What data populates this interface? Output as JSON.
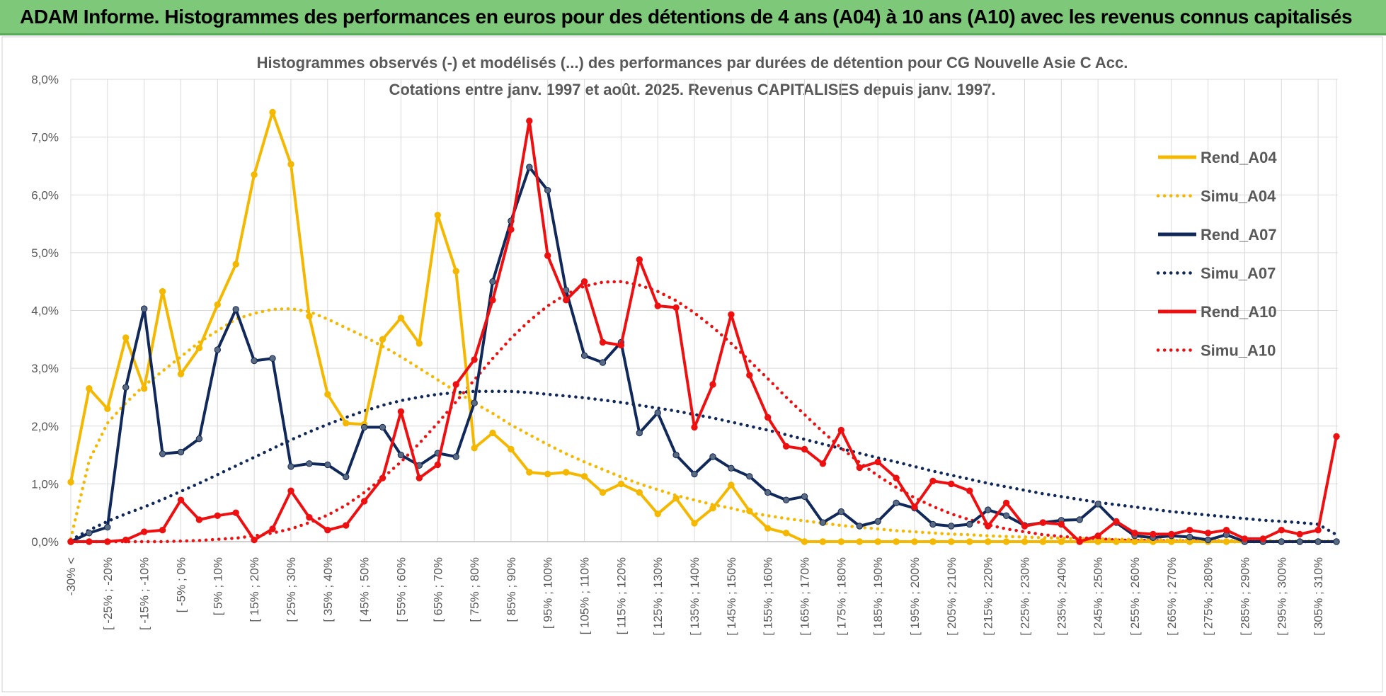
{
  "banner": {
    "title": "ADAM Informe. Histogrammes des performances en euros pour des détentions de 4 ans (A04) à 10 ans (A10) avec les revenus connus capitalisés"
  },
  "colors": {
    "banner_bg": "#7ec87a",
    "A04": "#f5b800",
    "A07": "#10285a",
    "A10": "#ee1010",
    "grid": "#d9d9d9"
  },
  "chart_data": {
    "type": "line",
    "title": "Histogrammes observés (-) et modélisés (...) des performances par durées de détention pour CG Nouvelle Asie C Acc.",
    "subtitle": "Cotations entre janv. 1997 et août. 2025. Revenus CAPITALISES depuis janv. 1997.",
    "xlabel": "",
    "ylabel": "",
    "ylim": [
      0,
      8
    ],
    "y_ticks": [
      "0,0%",
      "1,0%",
      "2,0%",
      "3,0%",
      "4,0%",
      "5,0%",
      "6,0%",
      "7,0%",
      "8,0%"
    ],
    "grid": true,
    "legend_position": "right",
    "x_tick_labels": [
      "-30% <",
      "[ -25% ; -20%",
      "[ -15% ; -10%",
      "[ -5% ; 0%",
      "[ 5% ; 10%",
      "[ 15% ; 20%",
      "[ 25% ; 30%",
      "[ 35% ; 40%",
      "[ 45% ; 50%",
      "[ 55% ; 60%",
      "[ 65% ; 70%",
      "[ 75% ; 80%",
      "[ 85% ; 90%",
      "[ 95% ; 100%",
      "[ 105% ; 110%",
      "[ 115% ; 120%",
      "[ 125% ; 130%",
      "[ 135% ; 140%",
      "[ 145% ; 150%",
      "[ 155% ; 160%",
      "[ 165% ; 170%",
      "[ 175% ; 180%",
      "[ 185% ; 190%",
      "[ 195% ; 200%",
      "[ 205% ; 210%",
      "[ 215% ; 220%",
      "[ 225% ; 230%",
      "[ 235% ; 240%",
      "[ 245% ; 250%",
      "[ 255% ; 260%",
      "[ 265% ; 270%",
      "[ 275% ; 280%",
      "[ 285% ; 290%",
      "[ 295% ; 300%",
      "[ 305% ; 310%"
    ],
    "n_points": 70,
    "series": [
      {
        "name": "Rend_A04",
        "style": "solid",
        "color": "#f5b800",
        "values": [
          1.03,
          2.65,
          2.3,
          3.53,
          2.65,
          4.33,
          2.9,
          3.35,
          4.1,
          4.8,
          6.35,
          7.43,
          6.53,
          3.9,
          2.55,
          2.05,
          2.03,
          3.5,
          3.87,
          3.43,
          5.65,
          4.68,
          1.62,
          1.88,
          1.6,
          1.2,
          1.17,
          1.2,
          1.13,
          0.85,
          1.0,
          0.85,
          0.48,
          0.75,
          0.32,
          0.58,
          0.98,
          0.53,
          0.23,
          0.15,
          0.0,
          0.0,
          0.0,
          0.0,
          0.0,
          0.0,
          0.0,
          0.0,
          0.0,
          0.0,
          0.0,
          0.0,
          0.0,
          0.0,
          0.0,
          0.0,
          0.0,
          0.0,
          0.0,
          0.0,
          0.0,
          0.0,
          0.0,
          0.0,
          0.0,
          0.0,
          0.0,
          0.0,
          0.0,
          0.0
        ]
      },
      {
        "name": "Simu_A04",
        "style": "dotted",
        "color": "#f5b800",
        "values": [
          0.05,
          1.4,
          2.05,
          2.4,
          2.7,
          2.95,
          3.2,
          3.45,
          3.65,
          3.85,
          3.95,
          4.02,
          4.03,
          3.98,
          3.85,
          3.7,
          3.55,
          3.38,
          3.2,
          3.0,
          2.8,
          2.6,
          2.4,
          2.22,
          2.02,
          1.85,
          1.68,
          1.52,
          1.38,
          1.25,
          1.12,
          1.0,
          0.9,
          0.8,
          0.72,
          0.64,
          0.58,
          0.5,
          0.45,
          0.4,
          0.36,
          0.32,
          0.28,
          0.25,
          0.22,
          0.19,
          0.17,
          0.15,
          0.13,
          0.12,
          0.1,
          0.09,
          0.08,
          0.07,
          0.06,
          0.05,
          0.05,
          0.04,
          0.04,
          0.03,
          0.03,
          0.03,
          0.02,
          0.02,
          0.02,
          0.02,
          0.01,
          0.01,
          0.01,
          0.01
        ]
      },
      {
        "name": "Rend_A07",
        "style": "solid",
        "color": "#10285a",
        "values": [
          0.0,
          0.15,
          0.25,
          2.67,
          4.03,
          1.52,
          1.55,
          1.78,
          3.32,
          4.02,
          3.13,
          3.17,
          1.3,
          1.35,
          1.33,
          1.12,
          1.98,
          1.98,
          1.5,
          1.32,
          1.53,
          1.47,
          2.4,
          4.5,
          5.55,
          6.48,
          6.08,
          4.35,
          3.22,
          3.1,
          3.45,
          1.88,
          2.23,
          1.5,
          1.17,
          1.47,
          1.27,
          1.13,
          0.85,
          0.72,
          0.78,
          0.33,
          0.52,
          0.27,
          0.35,
          0.67,
          0.58,
          0.3,
          0.27,
          0.3,
          0.55,
          0.45,
          0.28,
          0.33,
          0.37,
          0.38,
          0.65,
          0.33,
          0.1,
          0.07,
          0.1,
          0.08,
          0.03,
          0.12,
          0.0,
          0.0,
          0.0,
          0.0,
          0.0,
          0.0
        ]
      },
      {
        "name": "Simu_A07",
        "style": "dotted",
        "color": "#10285a",
        "values": [
          0.03,
          0.2,
          0.35,
          0.48,
          0.6,
          0.73,
          0.87,
          1.01,
          1.16,
          1.31,
          1.46,
          1.61,
          1.76,
          1.9,
          2.03,
          2.15,
          2.26,
          2.36,
          2.44,
          2.5,
          2.55,
          2.58,
          2.6,
          2.6,
          2.6,
          2.58,
          2.55,
          2.52,
          2.49,
          2.45,
          2.41,
          2.36,
          2.31,
          2.26,
          2.2,
          2.14,
          2.07,
          2.0,
          1.93,
          1.85,
          1.77,
          1.69,
          1.61,
          1.53,
          1.45,
          1.38,
          1.3,
          1.22,
          1.15,
          1.08,
          1.01,
          0.95,
          0.89,
          0.83,
          0.78,
          0.73,
          0.68,
          0.64,
          0.6,
          0.56,
          0.52,
          0.49,
          0.46,
          0.43,
          0.4,
          0.37,
          0.35,
          0.33,
          0.3,
          0.12
        ]
      },
      {
        "name": "Rend_A10",
        "style": "solid",
        "color": "#ee1010",
        "values": [
          0.0,
          0.0,
          0.0,
          0.03,
          0.17,
          0.2,
          0.72,
          0.38,
          0.45,
          0.5,
          0.03,
          0.22,
          0.88,
          0.42,
          0.2,
          0.28,
          0.7,
          1.1,
          2.25,
          1.1,
          1.33,
          2.72,
          3.15,
          4.18,
          5.4,
          7.28,
          4.95,
          4.18,
          4.5,
          3.45,
          3.4,
          4.88,
          4.08,
          4.05,
          1.98,
          2.72,
          3.93,
          2.88,
          2.15,
          1.65,
          1.6,
          1.35,
          1.93,
          1.28,
          1.38,
          1.1,
          0.6,
          1.05,
          1.0,
          0.88,
          0.27,
          0.67,
          0.27,
          0.33,
          0.3,
          0.0,
          0.1,
          0.35,
          0.15,
          0.13,
          0.13,
          0.2,
          0.15,
          0.2,
          0.05,
          0.05,
          0.2,
          0.13,
          0.2,
          1.82
        ]
      },
      {
        "name": "Simu_A10",
        "style": "dotted",
        "color": "#ee1010",
        "values": [
          0.0,
          0.0,
          0.0,
          0.0,
          0.0,
          0.0,
          0.01,
          0.02,
          0.04,
          0.06,
          0.1,
          0.15,
          0.22,
          0.33,
          0.46,
          0.63,
          0.85,
          1.1,
          1.38,
          1.7,
          2.05,
          2.42,
          2.8,
          3.17,
          3.52,
          3.82,
          4.08,
          4.28,
          4.42,
          4.49,
          4.5,
          4.44,
          4.33,
          4.17,
          3.96,
          3.71,
          3.43,
          3.13,
          2.82,
          2.5,
          2.2,
          1.9,
          1.62,
          1.37,
          1.14,
          0.94,
          0.76,
          0.61,
          0.48,
          0.38,
          0.29,
          0.22,
          0.17,
          0.12,
          0.09,
          0.07,
          0.05,
          0.03,
          0.02,
          0.02,
          0.01,
          0.01,
          0.01,
          0.0,
          0.0,
          0.0,
          0.0,
          0.0,
          0.0,
          0.0
        ]
      }
    ]
  }
}
